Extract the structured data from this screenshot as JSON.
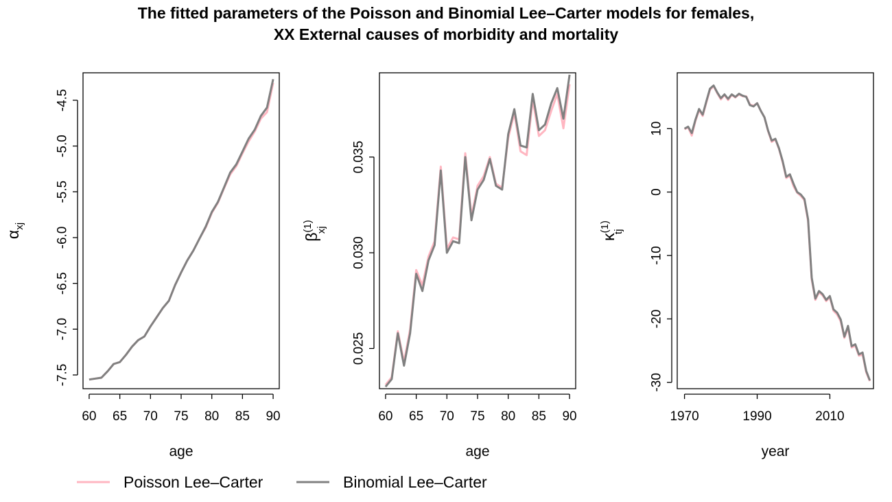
{
  "title_lines": [
    "The fitted parameters of the Poisson and Binomial Lee–Carter models for females,",
    "XX External causes of morbidity and mortality"
  ],
  "legend": {
    "placement": "bottom-left",
    "entries": [
      {
        "label": "Poisson Lee–Carter",
        "color": "#ffb6c1"
      },
      {
        "label": "Binomial Lee–Carter",
        "color": "#808080"
      }
    ]
  },
  "chart_data": [
    {
      "type": "line",
      "xlabel": "age",
      "ylabel_symbol": "α",
      "ylabel_sub": "xj",
      "ylabel_sup": "",
      "xlim": [
        59,
        91
      ],
      "ylim": [
        -7.65,
        -4.2
      ],
      "xticks": [
        60,
        65,
        70,
        75,
        80,
        85,
        90
      ],
      "yticks": [
        -7.5,
        -7.0,
        -6.5,
        -6.0,
        -5.5,
        -5.0,
        -4.5
      ],
      "ytick_labels": [
        "-7.5",
        "-7.0",
        "-6.5",
        "-6.0",
        "-5.5",
        "-5.0",
        "-4.5"
      ],
      "x": [
        60,
        61,
        62,
        63,
        64,
        65,
        66,
        67,
        68,
        69,
        70,
        71,
        72,
        73,
        74,
        75,
        76,
        77,
        78,
        79,
        80,
        81,
        82,
        83,
        84,
        85,
        86,
        87,
        88,
        89,
        90
      ],
      "series": [
        {
          "name": "Poisson Lee–Carter",
          "values": [
            -7.55,
            -7.54,
            -7.53,
            -7.46,
            -7.38,
            -7.36,
            -7.28,
            -7.19,
            -7.12,
            -7.08,
            -6.97,
            -6.87,
            -6.77,
            -6.69,
            -6.52,
            -6.38,
            -6.25,
            -6.14,
            -6.01,
            -5.89,
            -5.73,
            -5.62,
            -5.46,
            -5.31,
            -5.22,
            -5.08,
            -4.95,
            -4.84,
            -4.7,
            -4.63,
            -4.31
          ]
        },
        {
          "name": "Binomial Lee–Carter",
          "values": [
            -7.55,
            -7.54,
            -7.53,
            -7.46,
            -7.38,
            -7.36,
            -7.28,
            -7.19,
            -7.12,
            -7.08,
            -6.97,
            -6.87,
            -6.77,
            -6.69,
            -6.52,
            -6.38,
            -6.25,
            -6.14,
            -6.01,
            -5.88,
            -5.72,
            -5.61,
            -5.45,
            -5.29,
            -5.2,
            -5.06,
            -4.92,
            -4.82,
            -4.67,
            -4.58,
            -4.27
          ]
        }
      ]
    },
    {
      "type": "line",
      "xlabel": "age",
      "ylabel_symbol": "β",
      "ylabel_sub": "xj",
      "ylabel_sup": "(1)",
      "xlim": [
        59,
        91
      ],
      "ylim": [
        0.0229,
        0.0394
      ],
      "xticks": [
        60,
        65,
        70,
        75,
        80,
        85,
        90
      ],
      "yticks": [
        0.025,
        0.03,
        0.035
      ],
      "ytick_labels": [
        "0.025",
        "0.030",
        "0.035"
      ],
      "x": [
        60,
        61,
        62,
        63,
        64,
        65,
        66,
        67,
        68,
        69,
        70,
        71,
        72,
        73,
        74,
        75,
        76,
        77,
        78,
        79,
        80,
        81,
        82,
        83,
        84,
        85,
        86,
        87,
        88,
        89,
        90
      ],
      "series": [
        {
          "name": "Poisson Lee–Carter",
          "values": [
            0.0231,
            0.0235,
            0.0259,
            0.0243,
            0.026,
            0.0291,
            0.0283,
            0.0298,
            0.0306,
            0.0345,
            0.0302,
            0.0308,
            0.0307,
            0.0352,
            0.0319,
            0.0335,
            0.034,
            0.035,
            0.0336,
            0.0334,
            0.036,
            0.0373,
            0.0353,
            0.0351,
            0.038,
            0.0361,
            0.0364,
            0.0374,
            0.0383,
            0.0365,
            0.0388
          ]
        },
        {
          "name": "Binomial Lee–Carter",
          "values": [
            0.023,
            0.0234,
            0.0258,
            0.0241,
            0.0258,
            0.0289,
            0.028,
            0.0296,
            0.0304,
            0.0343,
            0.03,
            0.0306,
            0.0305,
            0.035,
            0.0317,
            0.0333,
            0.0338,
            0.0349,
            0.0335,
            0.0333,
            0.0362,
            0.0375,
            0.0356,
            0.0355,
            0.0383,
            0.0364,
            0.0367,
            0.0378,
            0.0386,
            0.037,
            0.0393
          ]
        }
      ]
    },
    {
      "type": "line",
      "xlabel": "year",
      "ylabel_symbol": "κ",
      "ylabel_sub": "tj",
      "ylabel_sup": "(1)",
      "xlim": [
        1968,
        2022
      ],
      "ylim": [
        -31,
        18.8
      ],
      "xticks": [
        1970,
        1990,
        2010
      ],
      "yticks": [
        -30,
        -20,
        -10,
        0,
        10
      ],
      "ytick_labels": [
        "-30",
        "-20",
        "-10",
        "0",
        "10"
      ],
      "x": [
        1970,
        1971,
        1972,
        1973,
        1974,
        1975,
        1976,
        1977,
        1978,
        1979,
        1980,
        1981,
        1982,
        1983,
        1984,
        1985,
        1986,
        1987,
        1988,
        1989,
        1990,
        1991,
        1992,
        1993,
        1994,
        1995,
        1996,
        1997,
        1998,
        1999,
        2000,
        2001,
        2002,
        2003,
        2004,
        2005,
        2006,
        2007,
        2008,
        2009,
        2010,
        2011,
        2012,
        2013,
        2014,
        2015,
        2016,
        2017,
        2018,
        2019,
        2020,
        2021
      ],
      "series": [
        {
          "name": "Poisson Lee–Carter",
          "values": [
            9.9,
            10.2,
            8.9,
            11.2,
            12.9,
            12.0,
            14.1,
            16.1,
            16.7,
            15.6,
            14.6,
            15.3,
            14.5,
            15.3,
            14.9,
            15.4,
            15.1,
            15.1,
            13.8,
            13.6,
            14.0,
            12.8,
            11.8,
            9.6,
            7.9,
            8.3,
            6.8,
            4.7,
            2.2,
            2.6,
            0.9,
            -0.1,
            -0.6,
            -1.3,
            -4.6,
            -13.8,
            -17.0,
            -15.8,
            -16.3,
            -17.2,
            -16.6,
            -18.7,
            -19.3,
            -20.4,
            -23.0,
            -21.4,
            -24.5,
            -24.2,
            -25.8,
            -25.6,
            -28.4,
            -29.8
          ]
        },
        {
          "name": "Binomial Lee–Carter",
          "values": [
            10.0,
            10.3,
            9.3,
            11.4,
            13.1,
            12.2,
            14.3,
            16.3,
            16.8,
            15.7,
            14.8,
            15.4,
            14.7,
            15.4,
            15.0,
            15.5,
            15.2,
            15.0,
            13.7,
            13.5,
            14.0,
            12.8,
            11.8,
            9.7,
            8.1,
            8.4,
            6.9,
            4.9,
            2.4,
            2.8,
            1.3,
            0.0,
            -0.4,
            -1.1,
            -4.3,
            -13.5,
            -16.8,
            -15.6,
            -16.1,
            -17.0,
            -16.4,
            -18.5,
            -19.0,
            -20.1,
            -22.8,
            -21.1,
            -24.3,
            -24.0,
            -25.6,
            -25.3,
            -28.2,
            -29.7
          ]
        }
      ]
    }
  ]
}
